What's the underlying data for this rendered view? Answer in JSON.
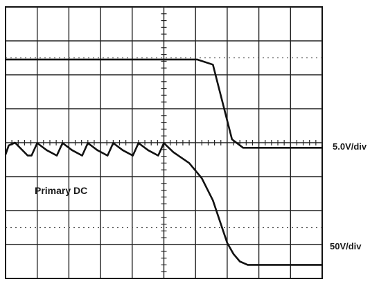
{
  "chart_data": {
    "type": "line",
    "title": "",
    "grid": true,
    "x_divisions": 10,
    "y_divisions": 8,
    "channel_labels": [
      {
        "text": "5.0V/div"
      },
      {
        "text": "50V/div"
      }
    ],
    "annotations": [
      {
        "text": "Primary DC"
      }
    ],
    "series": [
      {
        "x": [
          0.0,
          6.05,
          6.55,
          7.15,
          7.5,
          10.0
        ],
        "y": [
          6.45,
          6.45,
          6.3,
          4.1,
          3.85,
          3.85
        ]
      },
      {
        "x": [
          0.0,
          0.1,
          0.3,
          0.7,
          0.82,
          1.0,
          1.3,
          1.62,
          1.8,
          2.1,
          2.42,
          2.6,
          2.9,
          3.22,
          3.4,
          3.7,
          4.02,
          4.2,
          4.5,
          4.82,
          5.0,
          5.3,
          5.8,
          6.2,
          6.55,
          6.8,
          7.0,
          7.2,
          7.4,
          7.65,
          10.0
        ],
        "y": [
          3.65,
          3.92,
          4.0,
          3.62,
          3.62,
          3.99,
          3.78,
          3.62,
          3.99,
          3.78,
          3.62,
          3.99,
          3.78,
          3.62,
          3.99,
          3.78,
          3.62,
          3.99,
          3.78,
          3.62,
          3.99,
          3.72,
          3.4,
          2.95,
          2.3,
          1.6,
          1.05,
          0.72,
          0.5,
          0.4,
          0.4
        ]
      }
    ]
  }
}
